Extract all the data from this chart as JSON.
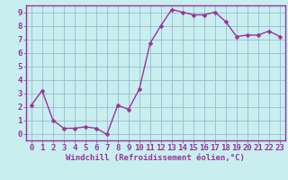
{
  "x": [
    0,
    1,
    2,
    3,
    4,
    5,
    6,
    7,
    8,
    9,
    10,
    11,
    12,
    13,
    14,
    15,
    16,
    17,
    18,
    19,
    20,
    21,
    22,
    23
  ],
  "y": [
    2.1,
    3.2,
    1.0,
    0.4,
    0.4,
    0.5,
    0.4,
    -0.05,
    2.1,
    1.8,
    3.3,
    6.7,
    8.0,
    9.2,
    9.0,
    8.8,
    8.8,
    9.0,
    8.3,
    7.2,
    7.3,
    7.3,
    7.6,
    7.2
  ],
  "line_color": "#993399",
  "marker_color": "#993399",
  "bg_color": "#c8eef0",
  "grid_color": "#99bbcc",
  "axis_color": "#993399",
  "spine_color": "#993399",
  "xlabel": "Windchill (Refroidissement éolien,°C)",
  "xlim": [
    -0.5,
    23.5
  ],
  "ylim": [
    -0.5,
    9.5
  ],
  "xticks": [
    0,
    1,
    2,
    3,
    4,
    5,
    6,
    7,
    8,
    9,
    10,
    11,
    12,
    13,
    14,
    15,
    16,
    17,
    18,
    19,
    20,
    21,
    22,
    23
  ],
  "yticks": [
    0,
    1,
    2,
    3,
    4,
    5,
    6,
    7,
    8,
    9
  ],
  "xlabel_fontsize": 6.5,
  "tick_fontsize": 6.5,
  "line_width": 1.0,
  "marker_size": 2.5
}
